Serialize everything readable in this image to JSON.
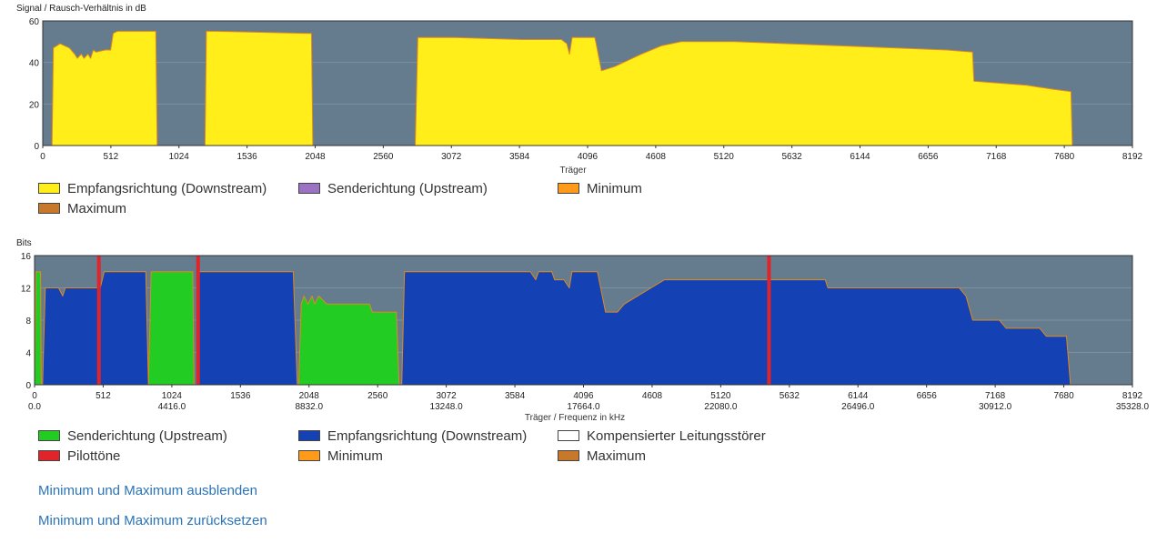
{
  "chart_data": [
    {
      "type": "area",
      "title": "Signal / Rausch-Verhältnis in dB",
      "xlabel": "Träger",
      "ylabel": "Signal / Rausch-Verhältnis in dB",
      "xlim": [
        0,
        8192
      ],
      "ylim": [
        0,
        60
      ],
      "xticks": [
        "0",
        "512",
        "1024",
        "1536",
        "2048",
        "2560",
        "3072",
        "3584",
        "4096",
        "4608",
        "5120",
        "5632",
        "6144",
        "6656",
        "7168",
        "7680",
        "8192"
      ],
      "yticks": [
        "0",
        "20",
        "40",
        "60"
      ],
      "series": [
        {
          "name": "Empfangsrichtung (Downstream)",
          "color": "#ffee1a",
          "points": [
            [
              70,
              0
            ],
            [
              80,
              47
            ],
            [
              130,
              49
            ],
            [
              200,
              47
            ],
            [
              240,
              44
            ],
            [
              260,
              42
            ],
            [
              290,
              44
            ],
            [
              310,
              42
            ],
            [
              340,
              44
            ],
            [
              360,
              42
            ],
            [
              380,
              46
            ],
            [
              400,
              45
            ],
            [
              470,
              46
            ],
            [
              510,
              46
            ],
            [
              530,
              54
            ],
            [
              560,
              55
            ],
            [
              820,
              55
            ],
            [
              850,
              55
            ],
            [
              860,
              0
            ],
            [
              1220,
              0
            ],
            [
              1230,
              55
            ],
            [
              1300,
              55
            ],
            [
              2000,
              54
            ],
            [
              2020,
              54
            ],
            [
              2030,
              0
            ],
            [
              2800,
              0
            ],
            [
              2820,
              52
            ],
            [
              3100,
              52
            ],
            [
              3600,
              51
            ],
            [
              3900,
              51
            ],
            [
              3940,
              49
            ],
            [
              3960,
              44
            ],
            [
              3980,
              52
            ],
            [
              4050,
              52
            ],
            [
              4150,
              52
            ],
            [
              4160,
              49
            ],
            [
              4200,
              36
            ],
            [
              4300,
              38
            ],
            [
              4500,
              44
            ],
            [
              4650,
              48
            ],
            [
              4800,
              50
            ],
            [
              5200,
              50
            ],
            [
              6000,
              48
            ],
            [
              6800,
              46
            ],
            [
              6990,
              45
            ],
            [
              7000,
              31
            ],
            [
              7200,
              30
            ],
            [
              7400,
              29
            ],
            [
              7600,
              27
            ],
            [
              7730,
              26
            ],
            [
              7740,
              0
            ]
          ]
        }
      ],
      "legend": [
        {
          "label": "Empfangsrichtung (Downstream)",
          "color": "#ffee1a"
        },
        {
          "label": "Senderichtung (Upstream)",
          "color": "#9b72c4"
        },
        {
          "label": "Minimum",
          "color": "#ff9a1a"
        },
        {
          "label": "Maximum",
          "color": "#c8782a"
        }
      ]
    },
    {
      "type": "area",
      "title": "Bits",
      "xlabel": "Träger / Frequenz in kHz",
      "ylabel": "Bits",
      "xlim": [
        0,
        8192
      ],
      "ylim": [
        0,
        16
      ],
      "xticks": [
        "0",
        "512",
        "1024",
        "1536",
        "2048",
        "2560",
        "3072",
        "3584",
        "4096",
        "4608",
        "5120",
        "5632",
        "6144",
        "6656",
        "7168",
        "7680",
        "8192"
      ],
      "xticks_khz": [
        "0.0",
        "4416.0",
        "8832.0",
        "13248.0",
        "17664.0",
        "22080.0",
        "26496.0",
        "30912.0",
        "35328.0"
      ],
      "yticks": [
        "0",
        "4",
        "8",
        "12",
        "16"
      ],
      "series": [
        {
          "name": "Senderichtung (Upstream)",
          "color": "#22cc22",
          "points": [
            [
              0,
              0
            ],
            [
              10,
              14
            ],
            [
              45,
              14
            ],
            [
              50,
              0
            ],
            [
              850,
              0
            ],
            [
              870,
              14
            ],
            [
              1180,
              14
            ],
            [
              1190,
              0
            ],
            [
              1970,
              0
            ],
            [
              1990,
              10
            ],
            [
              2010,
              11
            ],
            [
              2040,
              10
            ],
            [
              2070,
              11
            ],
            [
              2090,
              10
            ],
            [
              2120,
              11
            ],
            [
              2180,
              10
            ],
            [
              2500,
              10
            ],
            [
              2520,
              9
            ],
            [
              2700,
              9
            ],
            [
              2720,
              0
            ]
          ]
        },
        {
          "name": "Empfangsrichtung (Downstream)",
          "color": "#1441b4",
          "points": [
            [
              60,
              0
            ],
            [
              80,
              12
            ],
            [
              180,
              12
            ],
            [
              210,
              11
            ],
            [
              230,
              12
            ],
            [
              460,
              12
            ],
            [
              490,
              12
            ],
            [
              520,
              14
            ],
            [
              830,
              14
            ],
            [
              850,
              0
            ],
            [
              1210,
              0
            ],
            [
              1230,
              14
            ],
            [
              1930,
              14
            ],
            [
              1960,
              0
            ],
            [
              2740,
              0
            ],
            [
              2760,
              14
            ],
            [
              3700,
              14
            ],
            [
              3740,
              13
            ],
            [
              3760,
              14
            ],
            [
              3860,
              14
            ],
            [
              3880,
              13
            ],
            [
              3950,
              13
            ],
            [
              3990,
              12
            ],
            [
              4010,
              14
            ],
            [
              4200,
              14
            ],
            [
              4260,
              9
            ],
            [
              4350,
              9
            ],
            [
              4400,
              10
            ],
            [
              4500,
              11
            ],
            [
              4600,
              12
            ],
            [
              4700,
              13
            ],
            [
              5500,
              13
            ],
            [
              5680,
              13
            ],
            [
              5700,
              13
            ],
            [
              5900,
              13
            ],
            [
              5920,
              12
            ],
            [
              6900,
              12
            ],
            [
              6950,
              11
            ],
            [
              7000,
              8
            ],
            [
              7200,
              8
            ],
            [
              7250,
              7
            ],
            [
              7500,
              7
            ],
            [
              7550,
              6
            ],
            [
              7700,
              6
            ],
            [
              7730,
              0
            ]
          ]
        },
        {
          "name": "Pilottöne",
          "color": "#e0242a",
          "carriers": [
            480,
            1220,
            5480
          ]
        }
      ],
      "legend": [
        {
          "label": "Senderichtung (Upstream)",
          "color": "#22cc22"
        },
        {
          "label": "Empfangsrichtung (Downstream)",
          "color": "#1441b4"
        },
        {
          "label": "Kompensierter Leitungsstörer",
          "color": "#ffffff"
        },
        {
          "label": "Pilottöne",
          "color": "#e0242a"
        },
        {
          "label": "Minimum",
          "color": "#ff9a1a"
        },
        {
          "label": "Maximum",
          "color": "#c8782a"
        }
      ]
    }
  ],
  "links": {
    "hide_minmax": "Minimum und Maximum ausblenden",
    "reset_minmax": "Minimum und Maximum zurücksetzen"
  }
}
